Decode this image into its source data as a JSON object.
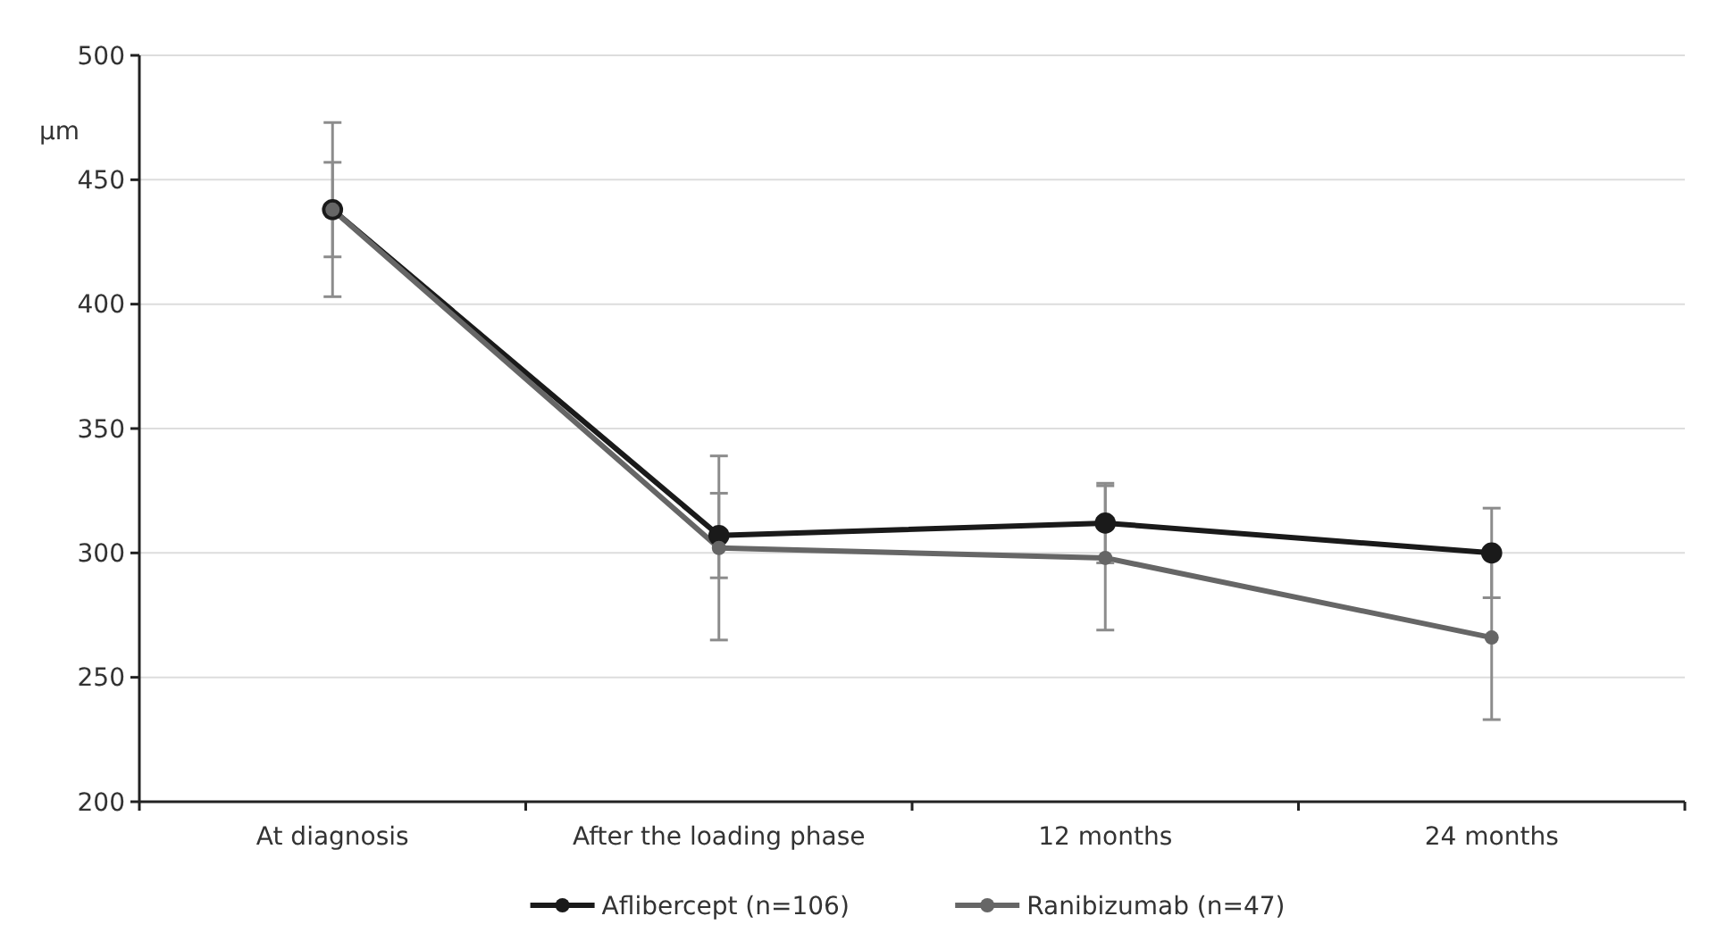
{
  "chart_data": {
    "type": "line",
    "ylabel": "µm",
    "categories": [
      "At diagnosis",
      "After the loading phase",
      "12 months",
      "24 months"
    ],
    "ylim": [
      200,
      500
    ],
    "yticks": [
      200,
      250,
      300,
      350,
      400,
      450,
      500
    ],
    "grid": "y",
    "legend": "bottom",
    "marker": "circle",
    "line_style": "solid",
    "series": [
      {
        "name": "Aflibercept (n=106)",
        "color": "#1a1a1a",
        "values": [
          438,
          307,
          312,
          300
        ],
        "errors": [
          19,
          17,
          16,
          18
        ]
      },
      {
        "name": "Ranibizumab (n=47)",
        "color": "#666666",
        "values": [
          438,
          302,
          298,
          266
        ],
        "errors": [
          35,
          37,
          29,
          33
        ]
      }
    ]
  }
}
